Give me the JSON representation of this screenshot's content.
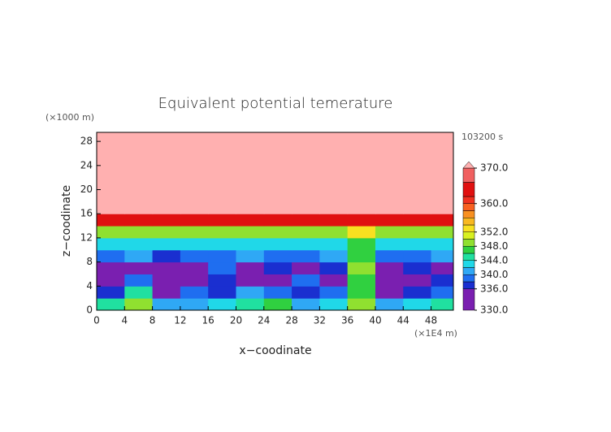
{
  "chart_data": {
    "type": "contour",
    "title": "Equivalent potential temerature",
    "y_unit": "(×1000 m)",
    "x_unit": "(×1E4 m)",
    "time_label": "103200 s",
    "xlabel": "x−coodinate",
    "ylabel": "z−coodinate",
    "xlim": [
      0,
      51.2
    ],
    "ylim": [
      0,
      29.5
    ],
    "xticks": [
      0,
      4,
      8,
      12,
      16,
      20,
      24,
      28,
      32,
      36,
      40,
      44,
      48
    ],
    "yticks": [
      0,
      4,
      8,
      12,
      16,
      20,
      24,
      28
    ],
    "x": [
      2,
      6,
      10,
      14,
      18,
      22,
      26,
      30,
      34,
      38,
      42,
      46,
      50
    ],
    "y": [
      1,
      3,
      5,
      7,
      9,
      11,
      13,
      15,
      17,
      19,
      21,
      23,
      25,
      27,
      29
    ],
    "z": [
      [
        344,
        348,
        340,
        340,
        342,
        344,
        346,
        340,
        342,
        348,
        340,
        342,
        344
      ],
      [
        336,
        344,
        334,
        338,
        336,
        340,
        338,
        336,
        338,
        346,
        334,
        336,
        338
      ],
      [
        334,
        338,
        332,
        334,
        336,
        332,
        334,
        338,
        334,
        346,
        332,
        334,
        336
      ],
      [
        334,
        334,
        332,
        334,
        338,
        334,
        336,
        334,
        336,
        348,
        334,
        336,
        334
      ],
      [
        338,
        340,
        336,
        338,
        338,
        340,
        338,
        338,
        340,
        346,
        338,
        338,
        340
      ],
      [
        342,
        342,
        342,
        342,
        342,
        342,
        342,
        342,
        342,
        346,
        342,
        342,
        342
      ],
      [
        348,
        348,
        348,
        348,
        348,
        348,
        348,
        348,
        348,
        352,
        348,
        348,
        348
      ],
      [
        364,
        364,
        364,
        364,
        364,
        364,
        364,
        364,
        364,
        364,
        364,
        364,
        364
      ],
      [
        372,
        372,
        372,
        372,
        372,
        372,
        372,
        372,
        372,
        372,
        372,
        372,
        372
      ],
      [
        372,
        372,
        372,
        372,
        372,
        372,
        372,
        372,
        372,
        372,
        372,
        372,
        372
      ],
      [
        372,
        372,
        372,
        372,
        372,
        372,
        372,
        372,
        372,
        372,
        372,
        372,
        372
      ],
      [
        372,
        372,
        372,
        372,
        372,
        372,
        372,
        372,
        372,
        372,
        372,
        372,
        372
      ],
      [
        372,
        372,
        372,
        372,
        372,
        372,
        372,
        372,
        372,
        372,
        372,
        372,
        372
      ],
      [
        372,
        372,
        372,
        372,
        372,
        372,
        372,
        372,
        372,
        372,
        372,
        372,
        372
      ],
      [
        372,
        372,
        372,
        372,
        372,
        372,
        372,
        372,
        372,
        372,
        372,
        372,
        372
      ]
    ],
    "cbarlim": [
      330,
      370
    ],
    "levels": [
      330,
      336,
      338,
      340,
      342,
      344,
      346,
      348,
      350,
      352,
      354,
      356,
      358,
      360,
      362,
      366,
      370
    ],
    "colors": [
      "#7a1fb0",
      "#1a2fd0",
      "#1f6ef0",
      "#2fa8f5",
      "#20d8e8",
      "#20e0a0",
      "#30d040",
      "#90e030",
      "#d8f020",
      "#f8e020",
      "#f8b820",
      "#f89020",
      "#f86020",
      "#f03020",
      "#e01010",
      "#f06060"
    ],
    "over_color": "#ffb0b0",
    "cbar_ticks": [
      {
        "value": 370,
        "label": "370.0"
      },
      {
        "value": 360,
        "label": "360.0"
      },
      {
        "value": 352,
        "label": "352.0"
      },
      {
        "value": 348,
        "label": "348.0"
      },
      {
        "value": 344,
        "label": "344.0"
      },
      {
        "value": 340,
        "label": "340.0"
      },
      {
        "value": 336,
        "label": "336.0"
      },
      {
        "value": 330,
        "label": "330.0"
      }
    ]
  }
}
